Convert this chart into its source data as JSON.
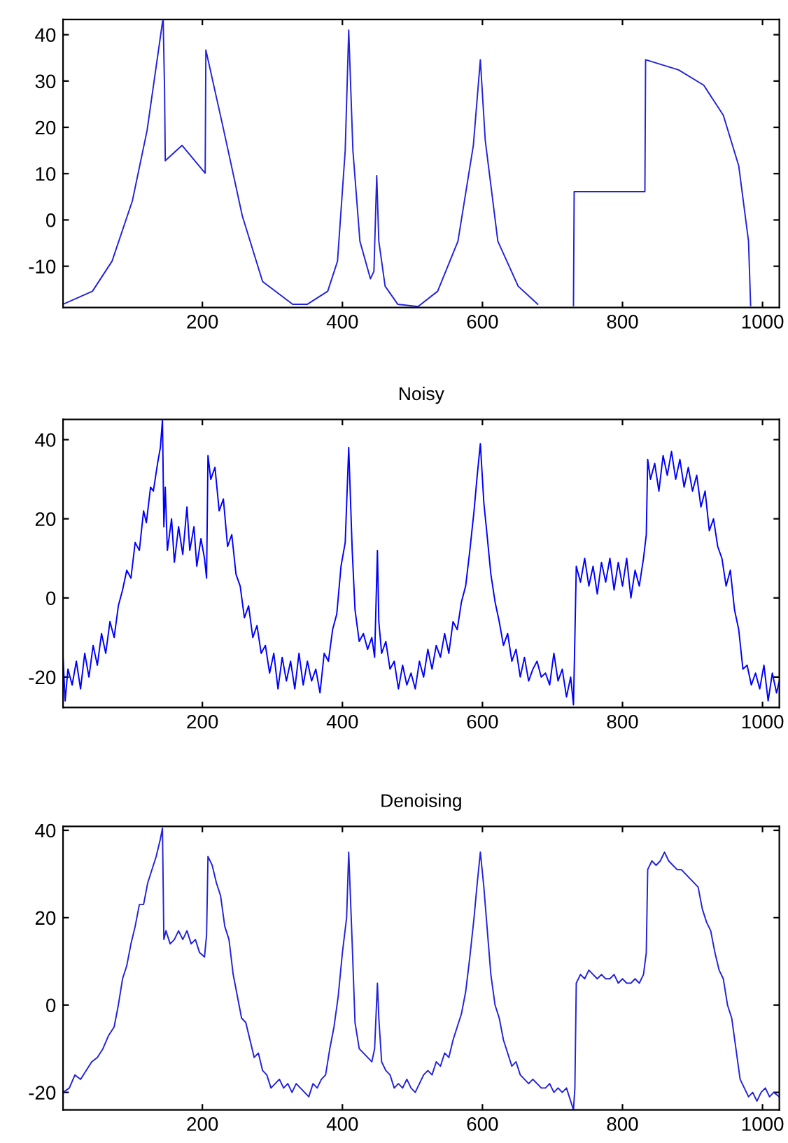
{
  "chart_data": [
    {
      "type": "line",
      "xlim": [
        1,
        1024
      ],
      "ylim": [
        -18.9,
        43.3
      ],
      "xticks": [
        200,
        400,
        600,
        800,
        1000
      ],
      "yticks": [
        -10,
        0,
        10,
        20,
        30,
        40
      ],
      "series": [
        {
          "color": "#2222dd",
          "x": [
            1,
            43,
            71,
            100,
            121,
            143,
            144,
            146,
            147,
            171,
            204,
            205,
            229,
            257,
            286,
            329,
            350,
            379,
            393,
            404,
            409,
            415,
            425,
            440,
            445,
            449,
            452,
            461,
            479,
            508,
            536,
            565,
            587,
            597,
            604,
            622,
            651,
            679,
            683,
            700,
            730,
            731,
            832,
            833,
            880,
            916,
            944,
            966,
            980,
            983
          ],
          "values": [
            -18.2,
            -15.4,
            -8.9,
            4.1,
            19.3,
            42.7,
            43.3,
            28,
            12.8,
            16.1,
            10.1,
            36.7,
            20.4,
            0.9,
            -13.3,
            -18.2,
            -18.2,
            -15.4,
            -8.9,
            15,
            41,
            15,
            -4.6,
            -12.7,
            -11.1,
            9.6,
            -4.6,
            -14.3,
            -18.2,
            -18.7,
            -15.4,
            -4.6,
            16.1,
            34.6,
            17.2,
            -4.6,
            -14.3,
            -18.2,
            null,
            null,
            -18.5,
            6.1,
            6.1,
            34.6,
            32.4,
            29.1,
            22.6,
            11.7,
            -4.6,
            -18.5
          ]
        }
      ]
    },
    {
      "type": "line",
      "title": "Noisy",
      "xlim": [
        1,
        1024
      ],
      "ylim": [
        -27.7,
        45.1
      ],
      "xticks": [
        200,
        400,
        600,
        800,
        1000
      ],
      "yticks": [
        -20,
        0,
        20,
        40
      ],
      "series": [
        {
          "color": "#0000ff",
          "x": [
            1,
            4,
            8,
            14,
            20,
            26,
            32,
            38,
            44,
            50,
            56,
            62,
            68,
            74,
            80,
            86,
            92,
            98,
            104,
            110,
            116,
            120,
            126,
            130,
            136,
            140,
            143,
            145,
            147,
            150,
            156,
            160,
            166,
            172,
            178,
            182,
            188,
            192,
            198,
            203,
            206,
            208,
            212,
            218,
            224,
            230,
            236,
            242,
            248,
            254,
            260,
            266,
            272,
            278,
            284,
            290,
            296,
            302,
            308,
            314,
            320,
            326,
            332,
            338,
            344,
            350,
            356,
            362,
            368,
            374,
            380,
            386,
            392,
            398,
            404,
            409,
            414,
            418,
            424,
            430,
            436,
            442,
            446,
            450,
            452,
            456,
            462,
            468,
            474,
            480,
            486,
            492,
            498,
            504,
            510,
            516,
            522,
            528,
            534,
            540,
            546,
            552,
            558,
            564,
            570,
            576,
            582,
            588,
            592,
            597,
            602,
            606,
            612,
            618,
            624,
            630,
            636,
            642,
            648,
            654,
            660,
            666,
            672,
            678,
            684,
            690,
            696,
            702,
            708,
            714,
            720,
            726,
            730,
            732,
            734,
            740,
            746,
            752,
            758,
            764,
            770,
            776,
            782,
            788,
            794,
            800,
            806,
            812,
            818,
            824,
            830,
            834,
            836,
            840,
            846,
            852,
            858,
            864,
            870,
            876,
            882,
            888,
            894,
            900,
            906,
            912,
            918,
            924,
            930,
            936,
            942,
            948,
            954,
            960,
            966,
            972,
            978,
            984,
            990,
            996,
            1002,
            1008,
            1014,
            1020,
            1024
          ],
          "values": [
            -15,
            -26,
            -18,
            -22,
            -16,
            -23,
            -14,
            -20,
            -12,
            -17,
            -9,
            -14,
            -6,
            -10,
            -2,
            2,
            7,
            5,
            14,
            12,
            22,
            19,
            28,
            27,
            34,
            38,
            45,
            18,
            28,
            12,
            20,
            9,
            18,
            11,
            23,
            12,
            18,
            8,
            15,
            10,
            5,
            36,
            30,
            33,
            22,
            25,
            13,
            16,
            6,
            3,
            -5,
            -2,
            -10,
            -7,
            -14,
            -12,
            -19,
            -14,
            -23,
            -15,
            -21,
            -16,
            -23,
            -14,
            -22,
            -16,
            -21,
            -18,
            -24,
            -14,
            -16,
            -8,
            -4,
            8,
            14,
            38,
            12,
            -3,
            -11,
            -9,
            -13,
            -10,
            -15,
            12,
            -6,
            -14,
            -11,
            -18,
            -16,
            -23,
            -17,
            -22,
            -19,
            -23,
            -16,
            -20,
            -13,
            -18,
            -12,
            -15,
            -9,
            -14,
            -6,
            -8,
            -1,
            3,
            12,
            22,
            30,
            39,
            24,
            17,
            6,
            -1,
            -6,
            -12,
            -9,
            -16,
            -13,
            -20,
            -15,
            -21,
            -18,
            -16,
            -20,
            -19,
            -22,
            -14,
            -21,
            -18,
            -25,
            -20,
            -27,
            -10,
            8,
            4,
            10,
            3,
            8,
            1,
            9,
            4,
            10,
            2,
            9,
            3,
            10,
            0,
            7,
            3,
            10,
            16,
            35,
            30,
            34,
            27,
            36,
            31,
            37,
            30,
            35,
            28,
            33,
            27,
            31,
            23,
            27,
            17,
            20,
            13,
            10,
            3,
            7,
            -3,
            -8,
            -18,
            -17,
            -22,
            -19,
            -23,
            -17,
            -26,
            -19,
            -24,
            -21
          ]
        }
      ]
    },
    {
      "type": "line",
      "title": "Denoising",
      "xlim": [
        1,
        1024
      ],
      "ylim": [
        -24,
        40.9
      ],
      "xticks": [
        200,
        400,
        600,
        800,
        1000
      ],
      "yticks": [
        -20,
        0,
        20,
        40
      ],
      "series": [
        {
          "color": "#2222dd",
          "x": [
            1,
            10,
            18,
            26,
            34,
            42,
            50,
            58,
            66,
            74,
            80,
            86,
            92,
            98,
            104,
            110,
            116,
            122,
            128,
            134,
            140,
            143,
            145,
            148,
            154,
            160,
            166,
            172,
            178,
            184,
            190,
            196,
            203,
            206,
            208,
            214,
            220,
            226,
            232,
            238,
            244,
            250,
            256,
            262,
            268,
            274,
            280,
            286,
            292,
            298,
            304,
            310,
            316,
            322,
            328,
            334,
            340,
            346,
            352,
            358,
            364,
            370,
            376,
            382,
            388,
            394,
            400,
            406,
            409,
            414,
            418,
            424,
            430,
            436,
            442,
            446,
            450,
            452,
            456,
            462,
            468,
            474,
            480,
            486,
            492,
            498,
            504,
            510,
            516,
            522,
            528,
            534,
            540,
            546,
            552,
            558,
            564,
            570,
            576,
            582,
            588,
            592,
            597,
            602,
            606,
            612,
            618,
            624,
            630,
            636,
            642,
            648,
            654,
            660,
            666,
            672,
            678,
            684,
            690,
            696,
            702,
            708,
            714,
            720,
            726,
            730,
            732,
            734,
            740,
            746,
            752,
            758,
            764,
            770,
            776,
            782,
            788,
            794,
            800,
            806,
            812,
            818,
            824,
            830,
            834,
            836,
            842,
            848,
            854,
            860,
            866,
            872,
            878,
            884,
            890,
            896,
            902,
            908,
            914,
            920,
            926,
            932,
            938,
            944,
            950,
            956,
            962,
            968,
            974,
            980,
            986,
            992,
            998,
            1004,
            1010,
            1016,
            1024
          ],
          "values": [
            -20,
            -19,
            -16,
            -17,
            -15,
            -13,
            -12,
            -10,
            -7,
            -5,
            0,
            6,
            9,
            14,
            18,
            23,
            23,
            28,
            31,
            34,
            38,
            40.5,
            15,
            17,
            14,
            15,
            17,
            15,
            17,
            14,
            15,
            12,
            11,
            16,
            34,
            32,
            28,
            25,
            18,
            15,
            7,
            2,
            -3,
            -4,
            -8,
            -12,
            -11,
            -15,
            -16,
            -19,
            -18,
            -17,
            -19,
            -18,
            -20,
            -18,
            -19,
            -20,
            -21,
            -18,
            -19,
            -17,
            -16,
            -10,
            -5,
            2,
            12,
            20,
            35,
            14,
            -4,
            -10,
            -11,
            -12,
            -13,
            -10,
            5,
            -3,
            -13,
            -15,
            -16,
            -19,
            -18,
            -19,
            -17,
            -19,
            -20,
            -18,
            -16,
            -15,
            -16,
            -13,
            -14,
            -11,
            -12,
            -8,
            -5,
            -2,
            3,
            11,
            20,
            27,
            35,
            27,
            19,
            7,
            0,
            -3,
            -8,
            -11,
            -14,
            -13,
            -16,
            -17,
            -18,
            -17,
            -18,
            -19,
            -19,
            -18,
            -20,
            -19,
            -20,
            -19,
            -22,
            -24,
            -19,
            5,
            7,
            6,
            8,
            7,
            6,
            7,
            6,
            6,
            7,
            5,
            6,
            5,
            5,
            6,
            5,
            7,
            12,
            31,
            33,
            32,
            33,
            35,
            33,
            32,
            31,
            31,
            30,
            29,
            28,
            27,
            22,
            19,
            17,
            12,
            8,
            6,
            0,
            -3,
            -10,
            -17,
            -19,
            -21,
            -20,
            -22,
            -20,
            -19,
            -21,
            -20,
            -21
          ]
        }
      ]
    }
  ]
}
